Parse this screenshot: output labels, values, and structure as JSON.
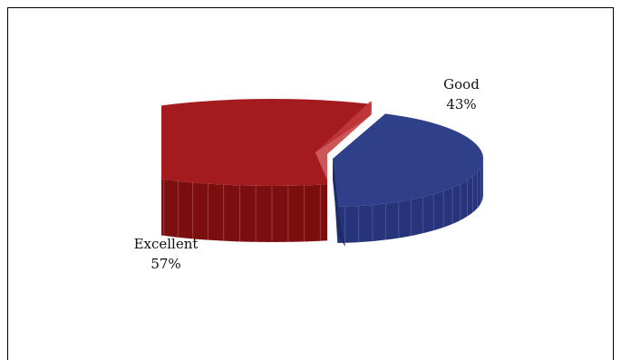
{
  "chart_data": {
    "type": "pie",
    "style": "3d-exploded",
    "title": "",
    "slices": [
      {
        "label": "Excellent",
        "value": 57,
        "value_label": "57%",
        "color": "#a31b1f",
        "side_color": "#7d0e10"
      },
      {
        "label": "Good",
        "value": 43,
        "value_label": "43%",
        "color": "#2f3f8a",
        "side_color": "#27347a"
      }
    ]
  }
}
